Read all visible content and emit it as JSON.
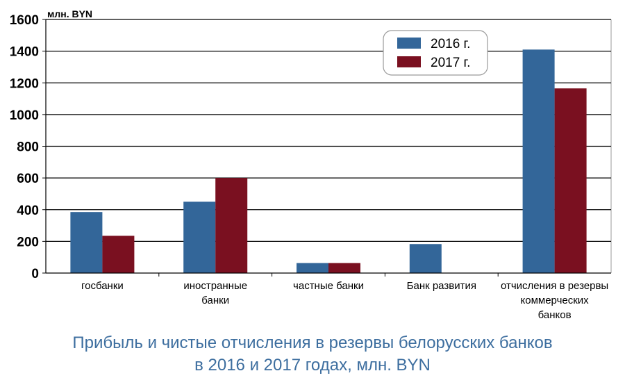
{
  "chart_data": {
    "type": "bar",
    "unit_label": "млн. BYN",
    "categories": [
      [
        "госбанки"
      ],
      [
        "иностранные",
        "банки"
      ],
      [
        "частные банки"
      ],
      [
        "Банк развития"
      ],
      [
        "отчисления в резервы",
        "коммерческих",
        "банков"
      ]
    ],
    "series": [
      {
        "name": "2016 г.",
        "color": "#336699",
        "values": [
          385,
          450,
          63,
          183,
          1410
        ]
      },
      {
        "name": "2017 г.",
        "color": "#7a1020",
        "values": [
          235,
          600,
          63,
          0,
          1165
        ]
      }
    ],
    "ylim": [
      0,
      1600
    ],
    "yticks": [
      0,
      200,
      400,
      600,
      800,
      1000,
      1200,
      1400,
      1600
    ],
    "grid": true,
    "legend_position": "top-right",
    "title": [
      "Прибыль и чистые отчисления в резервы белорусских банков",
      "в 2016 и 2017 годах, млн. BYN"
    ]
  }
}
